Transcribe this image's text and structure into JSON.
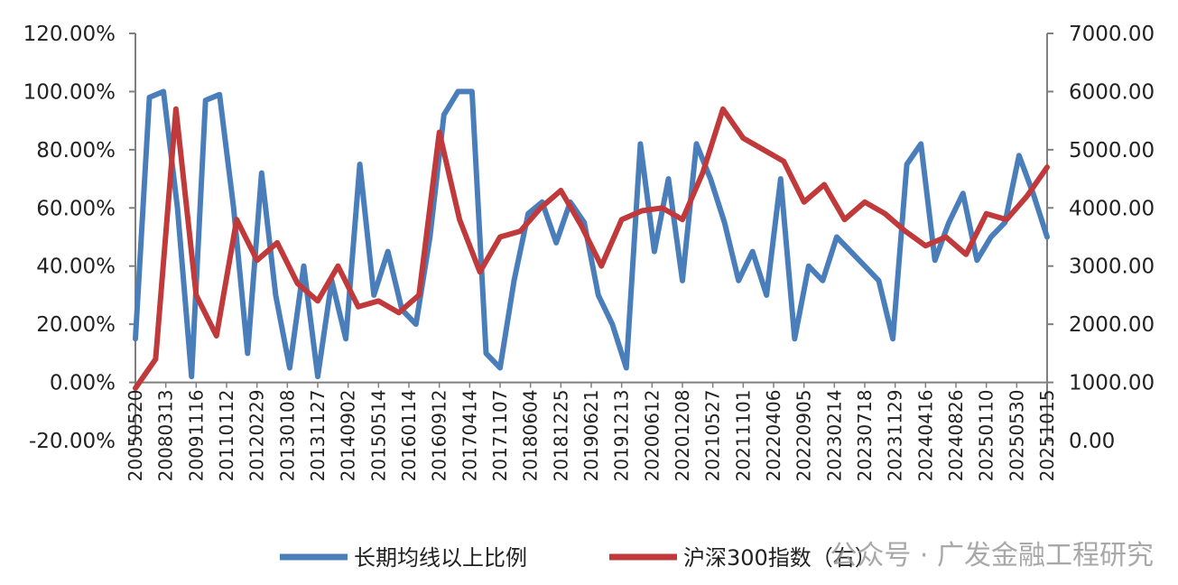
{
  "chart_data": {
    "type": "line",
    "title": "",
    "x_tick_labels": [
      "20050520",
      "20080313",
      "20091116",
      "20110112",
      "20120229",
      "20130108",
      "20131127",
      "20140902",
      "20150514",
      "20160114",
      "20160912",
      "20170414",
      "20171107",
      "20180604",
      "20181225",
      "20190621",
      "20191213",
      "20200612",
      "20201208",
      "20210527",
      "20211101",
      "20220406",
      "20220905",
      "20230214",
      "20230718",
      "20231129",
      "20240416",
      "20240826",
      "20250110",
      "20250530",
      "20251015"
    ],
    "y_left": {
      "ticks": [
        "-20.00%",
        "0.00%",
        "20.00%",
        "40.00%",
        "60.00%",
        "80.00%",
        "100.00%",
        "120.00%"
      ],
      "range": [
        -20,
        120
      ],
      "unit": "%"
    },
    "y_right": {
      "ticks": [
        "0.00",
        "1000.00",
        "2000.00",
        "3000.00",
        "4000.00",
        "5000.00",
        "6000.00",
        "7000.00"
      ],
      "range": [
        0,
        7000
      ]
    },
    "series": [
      {
        "name": "长期均线以上比例",
        "axis": "left",
        "color": "#4a7ebb",
        "values": [
          15,
          98,
          100,
          60,
          2,
          97,
          99,
          60,
          10,
          72,
          30,
          5,
          40,
          2,
          35,
          15,
          75,
          30,
          45,
          25,
          20,
          50,
          92,
          100,
          100,
          10,
          5,
          35,
          58,
          62,
          48,
          62,
          55,
          30,
          20,
          5,
          82,
          45,
          70,
          35,
          82,
          70,
          55,
          35,
          45,
          30,
          70,
          15,
          40,
          35,
          50,
          45,
          40,
          35,
          15,
          75,
          82,
          42,
          55,
          65,
          42,
          50,
          55,
          78,
          65,
          50
        ]
      },
      {
        "name": "沪深300指数（右）",
        "axis": "right",
        "color": "#c0393b",
        "values": [
          900,
          1400,
          5700,
          2500,
          1800,
          3800,
          3100,
          3400,
          2700,
          2400,
          3000,
          2300,
          2400,
          2200,
          2500,
          5300,
          3800,
          2900,
          3500,
          3600,
          4000,
          4300,
          3700,
          3000,
          3800,
          3950,
          4000,
          3800,
          4600,
          5700,
          5200,
          5000,
          4800,
          4100,
          4400,
          3800,
          4100,
          3900,
          3600,
          3350,
          3500,
          3200,
          3900,
          3800,
          4200,
          4700
        ]
      }
    ],
    "legend_position": "bottom",
    "watermark": "公众号 · 广发金融工程研究"
  }
}
